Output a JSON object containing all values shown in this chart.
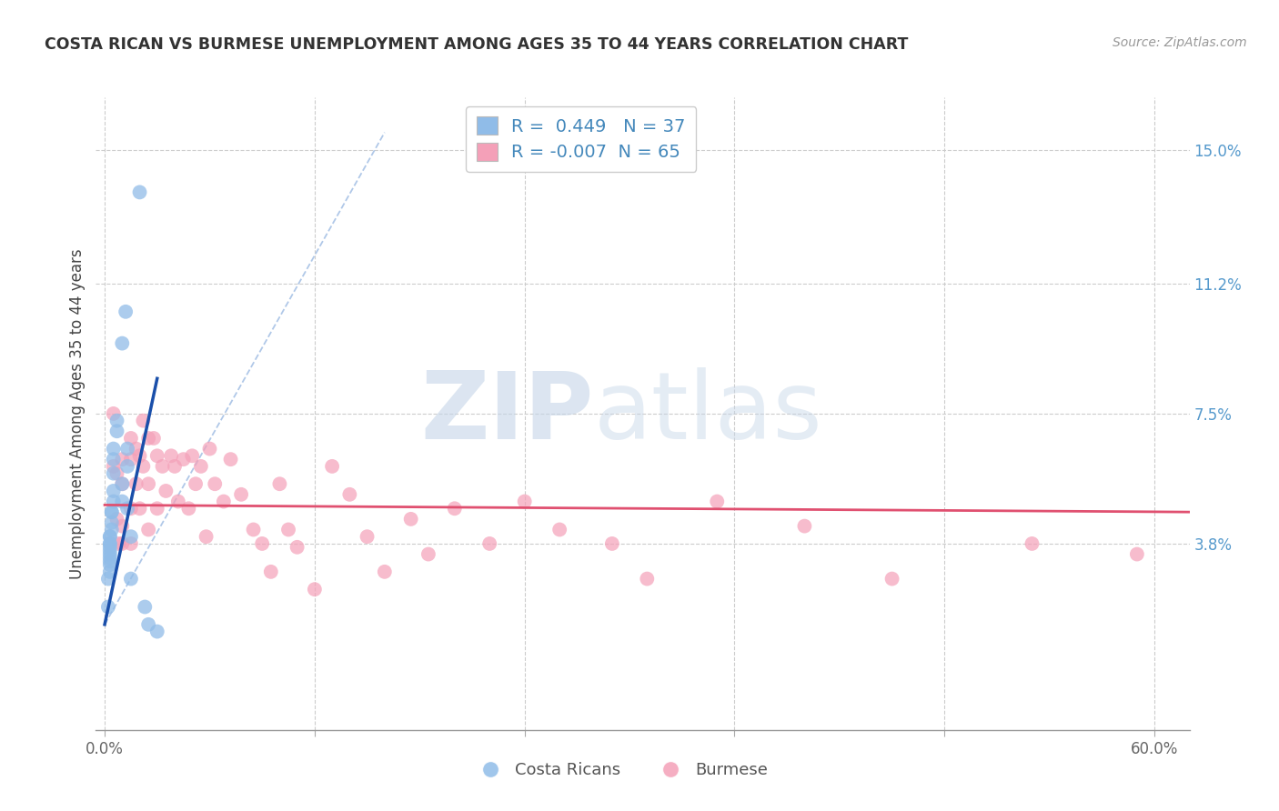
{
  "title": "COSTA RICAN VS BURMESE UNEMPLOYMENT AMONG AGES 35 TO 44 YEARS CORRELATION CHART",
  "source": "Source: ZipAtlas.com",
  "ylabel": "Unemployment Among Ages 35 to 44 years",
  "xlim": [
    -0.5,
    62.0
  ],
  "ylim": [
    -1.5,
    16.5
  ],
  "xtick_vals": [
    0.0,
    12.0,
    24.0,
    36.0,
    48.0,
    60.0
  ],
  "xtick_labels_show": [
    "0.0%",
    "",
    "",
    "",
    "",
    "60.0%"
  ],
  "right_ytick_vals": [
    3.8,
    7.5,
    11.2,
    15.0
  ],
  "right_yticklabels": [
    "3.8%",
    "7.5%",
    "11.2%",
    "15.0%"
  ],
  "grid_color": "#cccccc",
  "bg_color": "#ffffff",
  "watermark_color": "#c5d5e8",
  "blue_color": "#90bce8",
  "pink_color": "#f4a0b8",
  "trend_blue_color": "#1a4faa",
  "trend_pink_color": "#e05070",
  "diag_color": "#b0c8e8",
  "legend_R_blue": "0.449",
  "legend_N_blue": "37",
  "legend_R_pink": "-0.007",
  "legend_N_pink": "65",
  "blue_x": [
    2.0,
    1.2,
    1.0,
    0.7,
    0.7,
    0.5,
    0.5,
    0.5,
    0.5,
    0.5,
    0.4,
    0.4,
    0.4,
    0.4,
    0.3,
    0.3,
    0.3,
    0.3,
    0.3,
    0.3,
    0.3,
    0.3,
    0.3,
    0.3,
    0.3,
    0.2,
    0.2,
    1.0,
    1.0,
    1.3,
    1.3,
    1.3,
    1.5,
    1.5,
    2.3,
    2.5,
    3.0
  ],
  "blue_y": [
    13.8,
    10.4,
    9.5,
    7.3,
    7.0,
    6.5,
    6.2,
    5.8,
    5.3,
    5.0,
    4.7,
    4.7,
    4.4,
    4.2,
    4.0,
    4.0,
    3.8,
    3.8,
    3.7,
    3.6,
    3.5,
    3.4,
    3.3,
    3.2,
    3.0,
    2.8,
    2.0,
    5.5,
    5.0,
    6.5,
    6.0,
    4.8,
    4.0,
    2.8,
    2.0,
    1.5,
    1.3
  ],
  "pink_x": [
    0.5,
    0.5,
    0.7,
    0.7,
    0.8,
    1.0,
    1.0,
    1.0,
    1.0,
    1.5,
    1.5,
    1.5,
    1.5,
    1.8,
    1.8,
    2.0,
    2.0,
    2.2,
    2.2,
    2.5,
    2.5,
    2.5,
    2.8,
    3.0,
    3.0,
    3.3,
    3.5,
    3.8,
    4.0,
    4.2,
    4.5,
    4.8,
    5.0,
    5.2,
    5.5,
    5.8,
    6.0,
    6.3,
    6.8,
    7.2,
    7.8,
    8.5,
    9.0,
    9.5,
    10.0,
    10.5,
    11.0,
    12.0,
    13.0,
    14.0,
    15.0,
    16.0,
    17.5,
    18.5,
    20.0,
    22.0,
    24.0,
    26.0,
    29.0,
    31.0,
    35.0,
    40.0,
    45.0,
    53.0,
    59.0
  ],
  "pink_y": [
    7.5,
    6.0,
    5.8,
    4.5,
    3.8,
    6.2,
    5.5,
    4.3,
    3.8,
    6.8,
    6.2,
    4.8,
    3.8,
    6.5,
    5.5,
    6.3,
    4.8,
    7.3,
    6.0,
    6.8,
    5.5,
    4.2,
    6.8,
    6.3,
    4.8,
    6.0,
    5.3,
    6.3,
    6.0,
    5.0,
    6.2,
    4.8,
    6.3,
    5.5,
    6.0,
    4.0,
    6.5,
    5.5,
    5.0,
    6.2,
    5.2,
    4.2,
    3.8,
    3.0,
    5.5,
    4.2,
    3.7,
    2.5,
    6.0,
    5.2,
    4.0,
    3.0,
    4.5,
    3.5,
    4.8,
    3.8,
    5.0,
    4.2,
    3.8,
    2.8,
    5.0,
    4.3,
    2.8,
    3.8,
    3.5
  ],
  "pink_trend_y_start": 4.9,
  "pink_trend_y_end": 4.7,
  "blue_trend_x_start": 0.0,
  "blue_trend_y_start": 1.5,
  "blue_trend_x_end": 3.0,
  "blue_trend_y_end": 8.5,
  "diag_x_start": 0.0,
  "diag_y_start": 1.5,
  "diag_x_end": 16.0,
  "diag_y_end": 15.5
}
